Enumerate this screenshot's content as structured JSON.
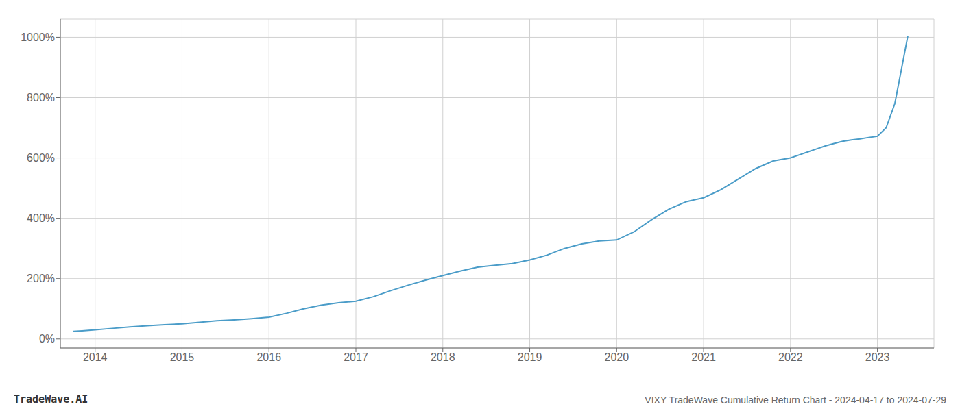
{
  "chart_data": {
    "type": "line",
    "title": "VIXY TradeWave Cumulative Return Chart - 2024-04-17 to 2024-07-29",
    "annotations": [
      "TradeWave.AI"
    ],
    "color": "#4a9cc8",
    "grid": true,
    "xlim": [
      2013.6,
      2023.65
    ],
    "ylim": [
      -30,
      1060
    ],
    "xticks": [
      2014,
      2015,
      2016,
      2017,
      2018,
      2019,
      2020,
      2021,
      2022,
      2023
    ],
    "yticks": [
      {
        "value": 0,
        "label": "0%"
      },
      {
        "value": 200,
        "label": "200%"
      },
      {
        "value": 400,
        "label": "400%"
      },
      {
        "value": 600,
        "label": "600%"
      },
      {
        "value": 800,
        "label": "800%"
      },
      {
        "value": 1000,
        "label": "1000%"
      }
    ],
    "x": [
      2013.75,
      2013.85,
      2014.0,
      2014.2,
      2014.4,
      2014.6,
      2014.8,
      2015.0,
      2015.2,
      2015.4,
      2015.6,
      2015.8,
      2016.0,
      2016.2,
      2016.4,
      2016.6,
      2016.8,
      2017.0,
      2017.2,
      2017.4,
      2017.6,
      2017.8,
      2018.0,
      2018.2,
      2018.4,
      2018.6,
      2018.8,
      2019.0,
      2019.2,
      2019.4,
      2019.6,
      2019.8,
      2020.0,
      2020.2,
      2020.4,
      2020.6,
      2020.8,
      2021.0,
      2021.2,
      2021.4,
      2021.6,
      2021.8,
      2022.0,
      2022.1,
      2022.2,
      2022.3,
      2022.4,
      2022.5,
      2022.6,
      2022.7,
      2022.8,
      2022.9,
      2023.0,
      2023.1,
      2023.2,
      2023.3,
      2023.35
    ],
    "values": [
      25,
      27,
      30,
      35,
      40,
      44,
      47,
      50,
      55,
      60,
      63,
      67,
      72,
      85,
      100,
      112,
      120,
      125,
      140,
      160,
      178,
      195,
      210,
      225,
      238,
      244,
      250,
      262,
      278,
      300,
      315,
      325,
      328,
      355,
      395,
      430,
      455,
      468,
      495,
      530,
      565,
      590,
      600,
      610,
      620,
      630,
      640,
      648,
      655,
      660,
      663,
      668,
      672,
      700,
      780,
      930,
      1005
    ]
  }
}
